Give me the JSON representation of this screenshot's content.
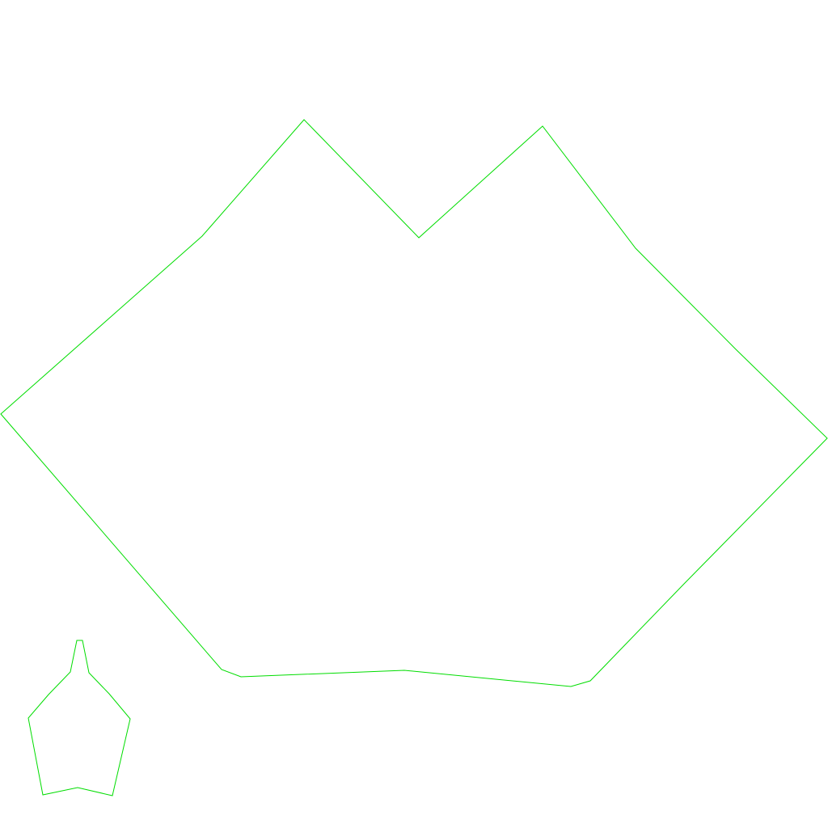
{
  "colors": {
    "background": "#ffffff",
    "outline": "#00dd00"
  },
  "shapes": [
    {
      "name": "large-mountain-outline"
    },
    {
      "name": "small-bottle-outline"
    }
  ]
}
